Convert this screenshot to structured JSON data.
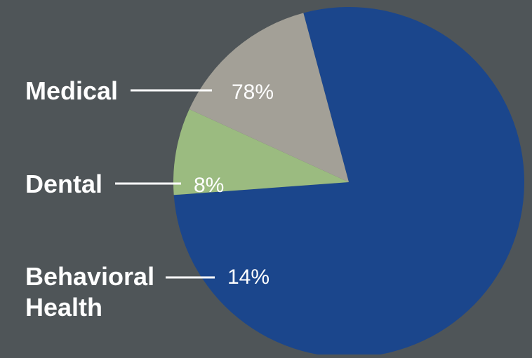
{
  "chart_data": {
    "type": "pie",
    "title": "",
    "slices": [
      {
        "label": "Medical",
        "label_lines": [
          "Medical"
        ],
        "value": 78,
        "value_label": "78%",
        "color": "#1b468c"
      },
      {
        "label": "Dental",
        "label_lines": [
          "Dental"
        ],
        "value": 8,
        "value_label": "8%",
        "color": "#9bbb80"
      },
      {
        "label": "Behavioral Health",
        "label_lines": [
          "Behavioral",
          "Health"
        ],
        "value": 14,
        "value_label": "14%",
        "color": "#a3a097"
      }
    ],
    "legend": "none"
  },
  "colors": {
    "background": "#4f5558",
    "text": "#ffffff"
  }
}
